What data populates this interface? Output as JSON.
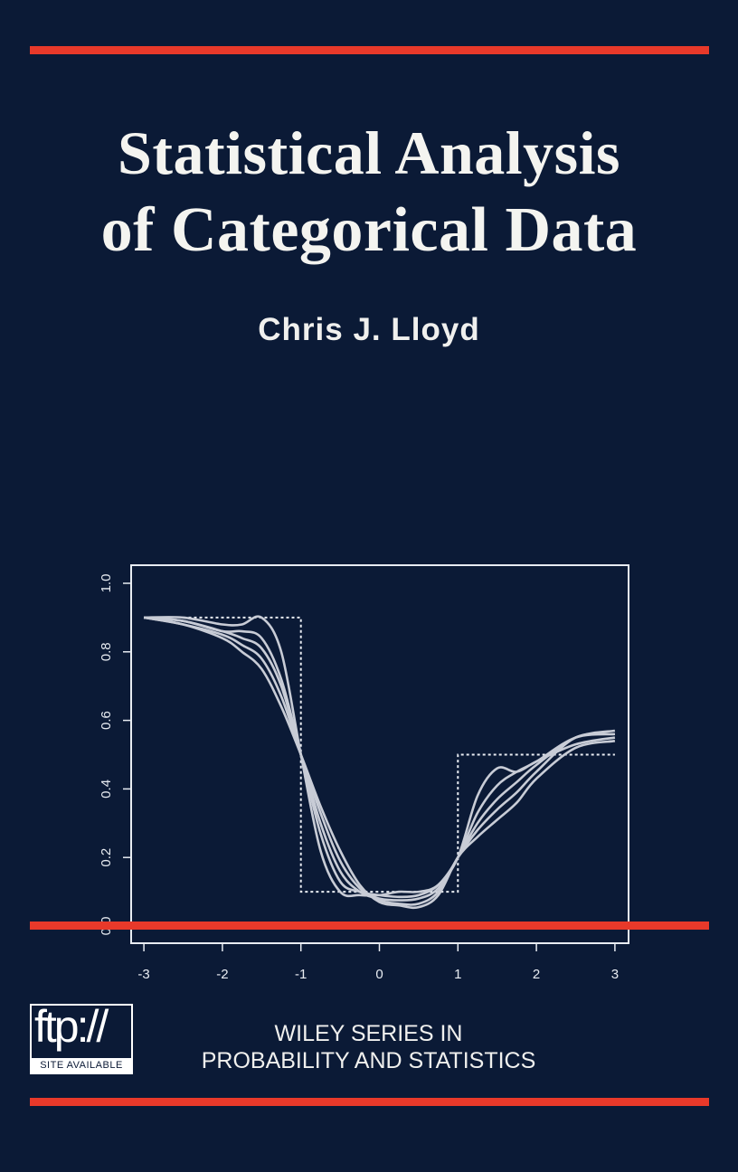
{
  "cover": {
    "title_line1": "Statistical Analysis",
    "title_line2": "of Categorical Data",
    "author": "Chris J. Lloyd",
    "ftp_logo": {
      "main": "ftp://",
      "sub": "SITE AVAILABLE"
    },
    "series_line1": "WILEY SERIES IN",
    "series_line2": "PROBABILITY AND STATISTICS",
    "colors": {
      "background": "#0b1a36",
      "accent_rule": "#e8392a",
      "text": "#f4f4f0",
      "curves": "#c8ccd6"
    }
  },
  "chart_data": {
    "type": "line",
    "title": "",
    "xlabel": "",
    "ylabel": "",
    "xlim": [
      -3,
      3
    ],
    "ylim": [
      0,
      1
    ],
    "x_ticks": [
      "-3",
      "-2",
      "-1",
      "0",
      "1",
      "2",
      "3"
    ],
    "y_ticks": [
      "0.0",
      "0.2",
      "0.4",
      "0.6",
      "0.8",
      "1.0"
    ],
    "grid": false,
    "step_function": {
      "style": "dotted",
      "points": [
        [
          -2.5,
          0.9
        ],
        [
          -1,
          0.9
        ],
        [
          -1,
          0.1
        ],
        [
          1,
          0.1
        ],
        [
          1,
          0.5
        ],
        [
          3,
          0.5
        ]
      ]
    },
    "x": [
      -3,
      -2.5,
      -2,
      -1.75,
      -1.5,
      -1.25,
      -1,
      -0.75,
      -0.5,
      -0.25,
      0,
      0.25,
      0.5,
      0.75,
      1,
      1.25,
      1.5,
      1.75,
      2,
      2.5,
      3
    ],
    "series": [
      {
        "values": [
          0.9,
          0.9,
          0.88,
          0.88,
          0.9,
          0.8,
          0.5,
          0.22,
          0.1,
          0.09,
          0.09,
          0.1,
          0.1,
          0.12,
          0.2,
          0.38,
          0.46,
          0.45,
          0.48,
          0.53,
          0.55
        ]
      },
      {
        "values": [
          0.9,
          0.89,
          0.86,
          0.86,
          0.84,
          0.72,
          0.5,
          0.27,
          0.13,
          0.1,
          0.09,
          0.085,
          0.09,
          0.12,
          0.2,
          0.33,
          0.41,
          0.45,
          0.48,
          0.55,
          0.56
        ]
      },
      {
        "values": [
          0.9,
          0.89,
          0.86,
          0.84,
          0.81,
          0.7,
          0.5,
          0.3,
          0.16,
          0.1,
          0.08,
          0.075,
          0.08,
          0.11,
          0.2,
          0.3,
          0.37,
          0.42,
          0.47,
          0.55,
          0.57
        ]
      },
      {
        "values": [
          0.9,
          0.88,
          0.85,
          0.82,
          0.78,
          0.67,
          0.5,
          0.33,
          0.19,
          0.11,
          0.075,
          0.065,
          0.065,
          0.1,
          0.2,
          0.28,
          0.34,
          0.39,
          0.45,
          0.55,
          0.56
        ]
      },
      {
        "values": [
          0.9,
          0.88,
          0.84,
          0.8,
          0.75,
          0.64,
          0.5,
          0.35,
          0.22,
          0.12,
          0.07,
          0.06,
          0.055,
          0.09,
          0.2,
          0.26,
          0.31,
          0.36,
          0.43,
          0.52,
          0.54
        ]
      }
    ]
  }
}
